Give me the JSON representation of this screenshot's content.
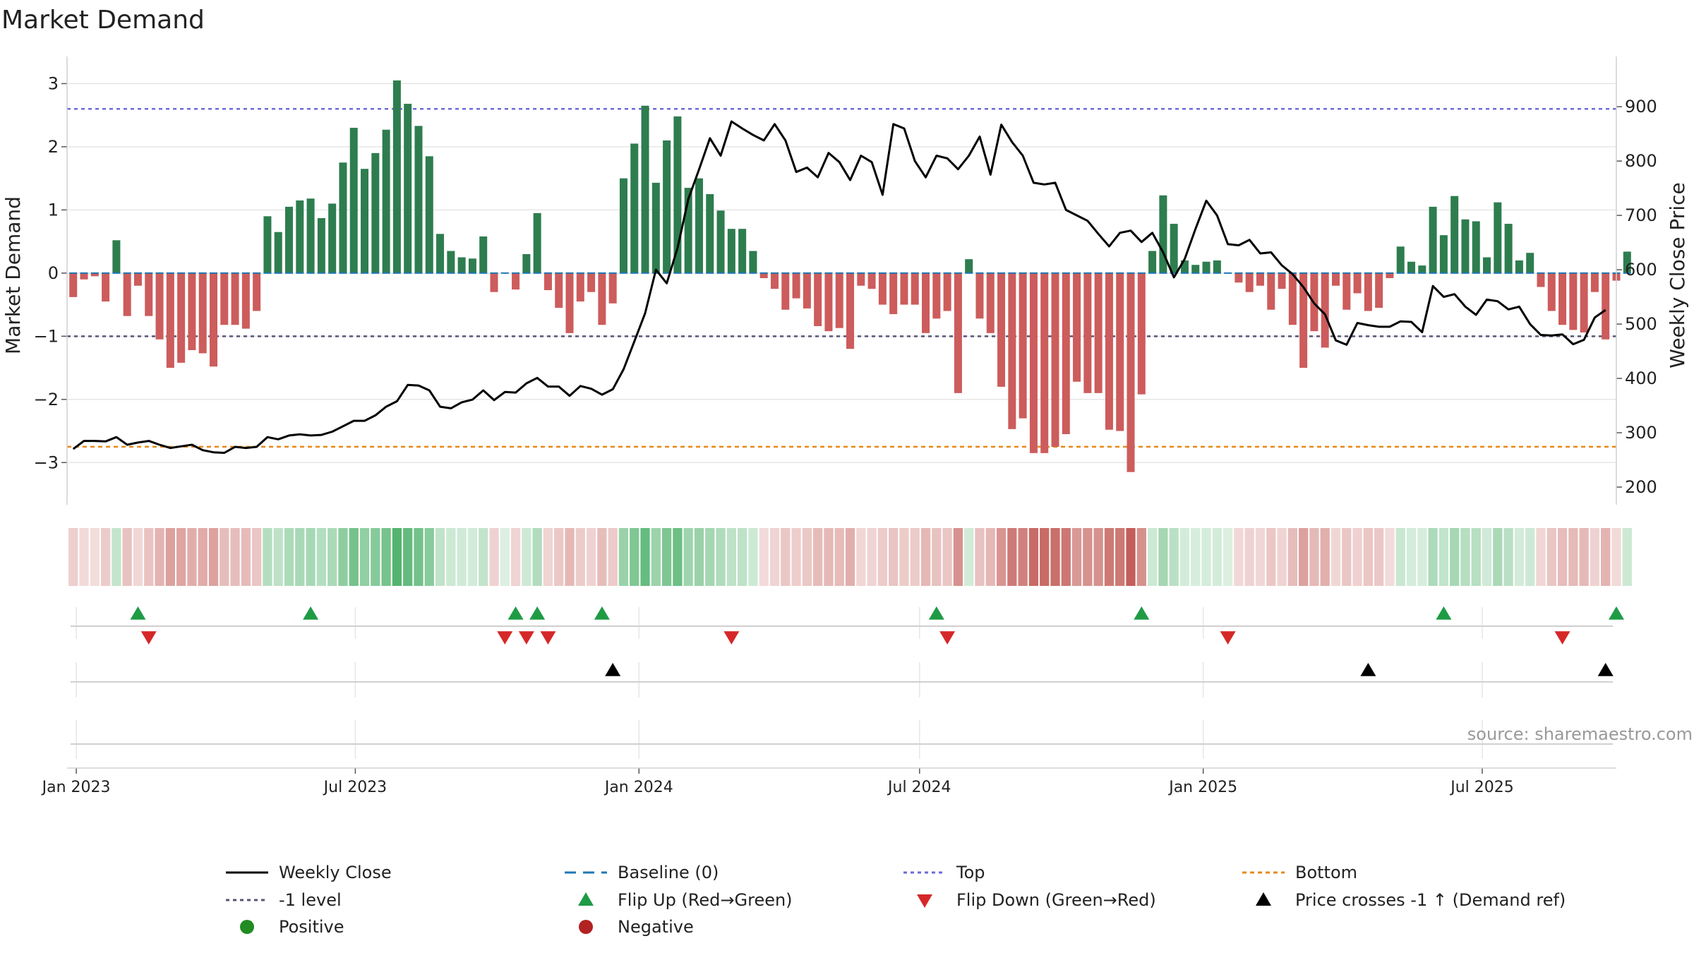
{
  "colors": {
    "positive": "#2e7d4f",
    "negative": "#cd5c5c",
    "price": "#000000",
    "baseline": "#1f77b4",
    "top": "#6b6bd6",
    "bottom": "#e6891a",
    "minus_one": "#555577",
    "flip_up": "#1f9b45",
    "flip_down": "#d62728",
    "cross": "#000000",
    "legend_positive": "#228b22",
    "legend_negative": "#b22222",
    "grid": "#e6e6e6",
    "source": "#999999"
  },
  "chart_data": {
    "type": "bar+line",
    "title": "Market Demand",
    "ylabel_left": "Market Demand",
    "ylabel_right": "Weekly Close Price",
    "source": "source: sharemaestro.com",
    "left_axis": {
      "min": -3.5,
      "max": 3.15,
      "ticks": [
        3,
        2,
        1,
        0,
        -1,
        -2,
        -3
      ],
      "tick_labels": [
        "3",
        "2",
        "1",
        "0",
        "−1",
        "−2",
        "−3"
      ]
    },
    "right_axis": {
      "min": 187,
      "max": 960,
      "ticks": [
        900,
        800,
        700,
        600,
        500,
        400,
        300,
        200
      ],
      "tick_labels": [
        "900",
        "800",
        "700",
        "600",
        "500",
        "400",
        "300",
        "200"
      ]
    },
    "reference_levels": {
      "top": 2.6,
      "minus_one": -1.0,
      "bottom": -2.75,
      "baseline": 0
    },
    "x_start": "2022-12-26",
    "x_end": "2025-09-26",
    "x_ticks": [
      {
        "date": "2023-01-01",
        "label": "Jan 2023"
      },
      {
        "date": "2023-07-01",
        "label": "Jul 2023"
      },
      {
        "date": "2024-01-01",
        "label": "Jan 2024"
      },
      {
        "date": "2024-07-01",
        "label": "Jul 2024"
      },
      {
        "date": "2025-01-01",
        "label": "Jan 2025"
      },
      {
        "date": "2025-07-01",
        "label": "Jul 2025"
      }
    ],
    "first_week": "2022-12-30",
    "demand": [
      -0.38,
      -0.1,
      -0.05,
      -0.45,
      0.52,
      -0.68,
      -0.2,
      -0.68,
      -1.05,
      -1.5,
      -1.42,
      -1.22,
      -1.27,
      -1.48,
      -0.82,
      -0.82,
      -0.88,
      -0.6,
      0.9,
      0.65,
      1.05,
      1.15,
      1.18,
      0.87,
      1.1,
      1.75,
      2.3,
      1.65,
      1.9,
      2.27,
      3.05,
      2.68,
      2.33,
      1.85,
      0.62,
      0.35,
      0.25,
      0.23,
      0.58,
      -0.3,
      0,
      -0.26,
      0.3,
      0.95,
      -0.27,
      -0.55,
      -0.95,
      -0.45,
      -0.3,
      -0.82,
      -0.48,
      1.5,
      2.05,
      2.65,
      1.43,
      2.1,
      2.48,
      1.35,
      1.5,
      1.25,
      0.99,
      0.7,
      0.7,
      0.35,
      -0.08,
      -0.25,
      -0.58,
      -0.4,
      -0.56,
      -0.84,
      -0.92,
      -0.87,
      -1.2,
      -0.2,
      -0.25,
      -0.5,
      -0.65,
      -0.5,
      -0.5,
      -0.95,
      -0.72,
      -0.6,
      -1.9,
      0.22,
      -0.72,
      -0.95,
      -1.8,
      -2.47,
      -2.3,
      -2.85,
      -2.85,
      -2.75,
      -2.55,
      -1.72,
      -1.9,
      -1.9,
      -2.48,
      -2.5,
      -3.15,
      -1.92,
      0.35,
      1.23,
      0.78,
      0.2,
      0.13,
      0.18,
      0.2,
      0,
      -0.15,
      -0.3,
      -0.2,
      -0.58,
      -0.25,
      -0.82,
      -1.5,
      -0.92,
      -1.18,
      -0.2,
      -0.58,
      -0.32,
      -0.6,
      -0.55,
      -0.08,
      0.42,
      0.18,
      0.12,
      1.05,
      0.6,
      1.22,
      0.85,
      0.82,
      0.25,
      1.12,
      0.78,
      0.2,
      0.32,
      -0.22,
      -0.6,
      -0.82,
      -0.9,
      -0.94,
      -0.3,
      -1.05,
      -0.12,
      0.34
    ],
    "close": [
      270,
      285,
      285,
      284,
      292,
      278,
      282,
      285,
      278,
      272,
      275,
      278,
      268,
      264,
      263,
      274,
      272,
      274,
      292,
      288,
      295,
      297,
      295,
      296,
      302,
      312,
      322,
      322,
      332,
      348,
      358,
      388,
      387,
      378,
      348,
      345,
      356,
      361,
      378,
      360,
      375,
      374,
      391,
      401,
      385,
      385,
      368,
      386,
      381,
      370,
      380,
      417,
      468,
      520,
      600,
      575,
      640,
      730,
      785,
      842,
      810,
      873,
      860,
      848,
      838,
      868,
      838,
      780,
      788,
      770,
      815,
      798,
      765,
      810,
      798,
      738,
      868,
      860,
      800,
      770,
      810,
      805,
      785,
      810,
      845,
      775,
      867,
      835,
      810,
      760,
      757,
      760,
      710,
      700,
      690,
      666,
      643,
      668,
      672,
      651,
      668,
      632,
      586,
      620,
      675,
      727,
      700,
      647,
      645,
      655,
      630,
      632,
      608,
      592,
      568,
      538,
      518,
      470,
      462,
      502,
      498,
      495,
      495,
      505,
      504,
      485,
      570,
      550,
      555,
      532,
      517,
      545,
      542,
      527,
      532,
      500,
      480,
      479,
      481,
      463,
      471,
      512,
      526
    ]
  },
  "color_strip": {
    "comment": "one cell per week, intensity follows demand value"
  },
  "signals": {
    "flip_up": [
      "2023-02-10",
      "2023-06-02",
      "2023-10-13",
      "2023-10-27",
      "2023-12-08",
      "2024-07-12",
      "2024-11-22",
      "2025-06-06",
      "2025-09-26"
    ],
    "flip_down": [
      "2023-02-17",
      "2023-10-06",
      "2023-10-20",
      "2023-11-03",
      "2024-03-01",
      "2024-07-19",
      "2025-01-17",
      "2025-08-22"
    ],
    "price_cross": [
      "2023-12-15",
      "2025-04-18",
      "2025-09-19"
    ]
  },
  "legend": [
    {
      "key": "weekly_close",
      "label": "Weekly Close"
    },
    {
      "key": "baseline",
      "label": "Baseline (0)"
    },
    {
      "key": "top",
      "label": "Top"
    },
    {
      "key": "bottom",
      "label": "Bottom"
    },
    {
      "key": "minus_one",
      "label": "-1 level"
    },
    {
      "key": "flip_up",
      "label": "Flip Up (Red→Green)"
    },
    {
      "key": "flip_down",
      "label": "Flip Down (Green→Red)"
    },
    {
      "key": "price_cross",
      "label": "Price crosses -1 ↑ (Demand ref)"
    },
    {
      "key": "positive",
      "label": "Positive"
    },
    {
      "key": "negative",
      "label": "Negative"
    }
  ]
}
